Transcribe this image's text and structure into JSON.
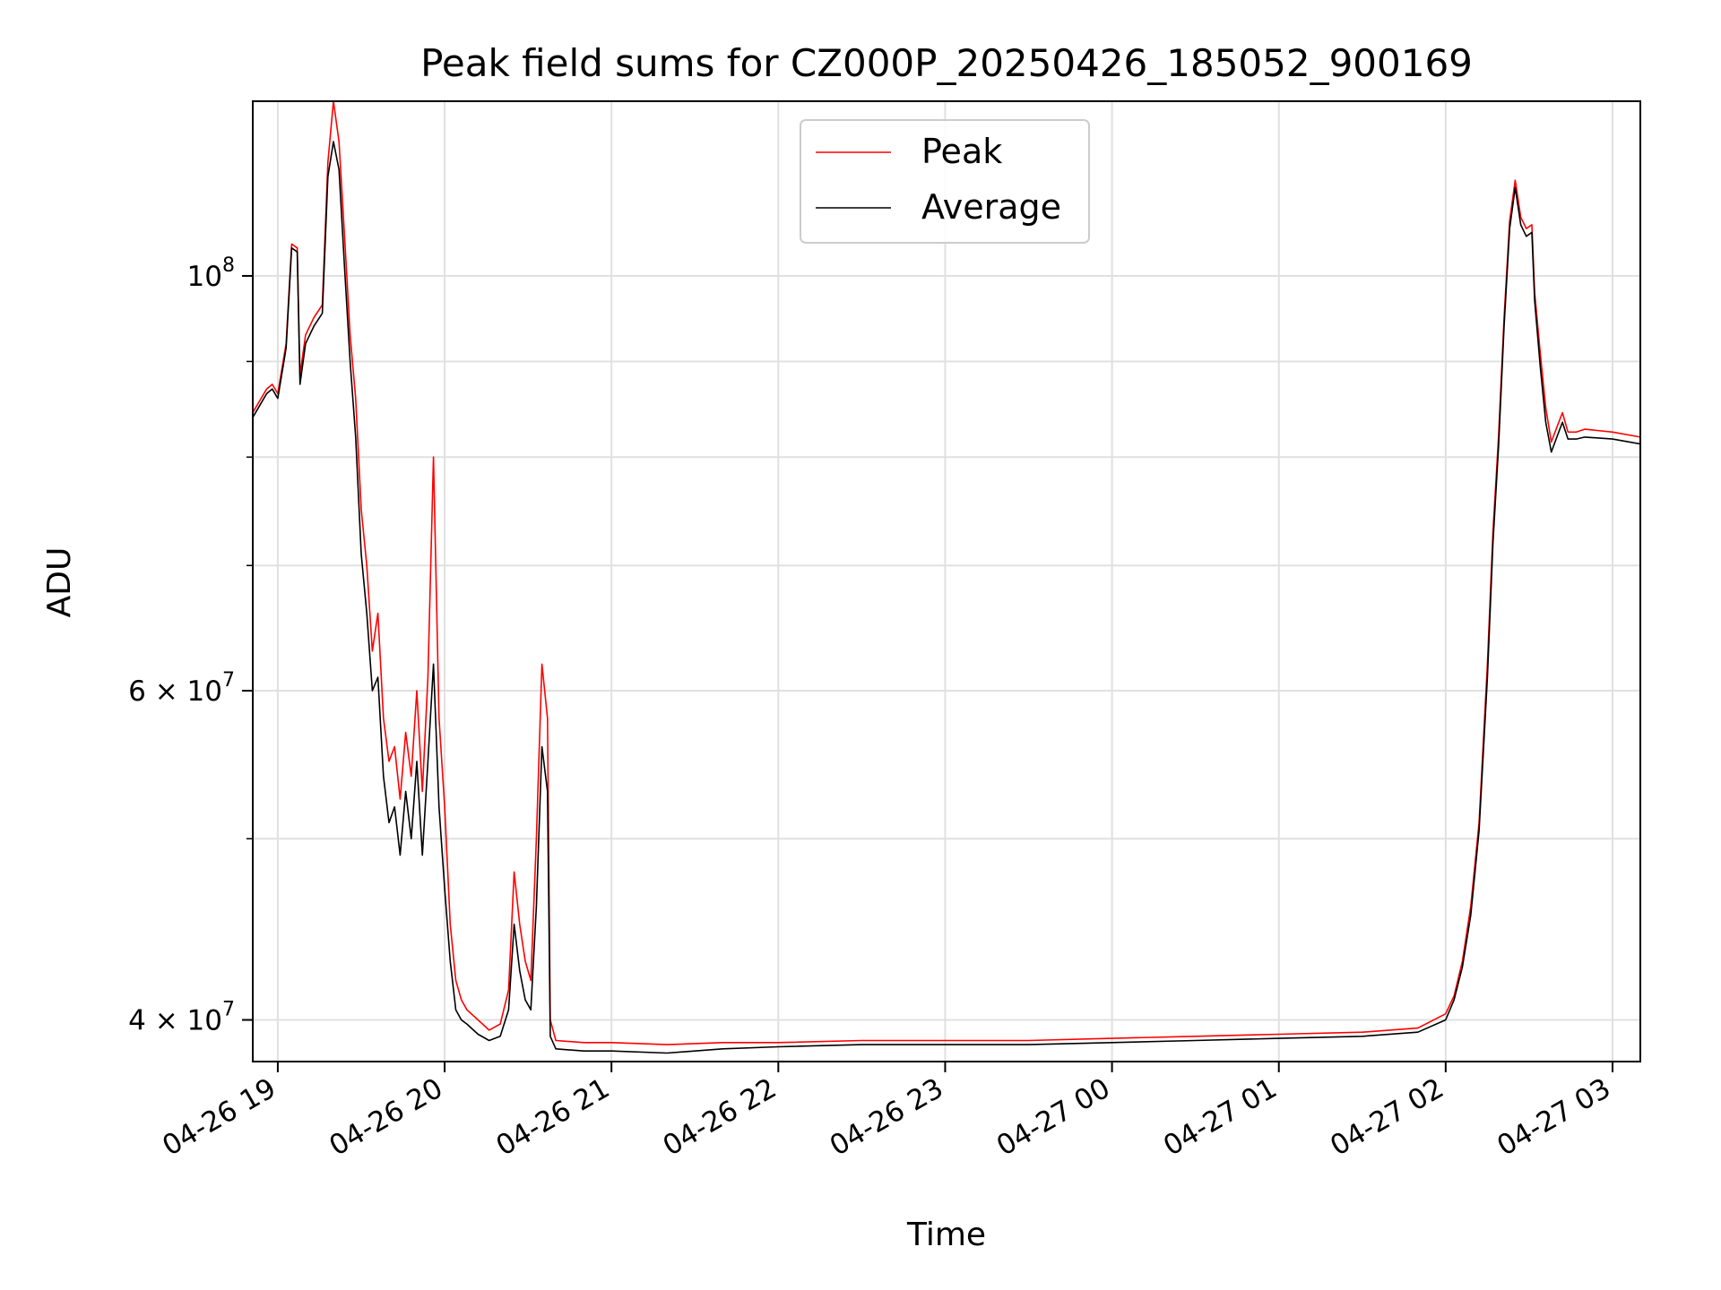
{
  "chart_data": {
    "type": "line",
    "title": "Peak field sums for CZ000P_20250426_185052_900169",
    "xlabel": "Time",
    "ylabel": "ADU",
    "y_scale": "log",
    "ylim": [
      38000000,
      124000000
    ],
    "xlim": [
      "04-26 18:51",
      "04-27 03:10"
    ],
    "grid": true,
    "legend_position": "upper center",
    "x_ticks": [
      "04-26 19",
      "04-26 20",
      "04-26 21",
      "04-26 22",
      "04-26 23",
      "04-27 00",
      "04-27 01",
      "04-27 02",
      "04-27 03"
    ],
    "y_tick_labels": [
      {
        "value": 100000000,
        "base": "10",
        "exp": "8",
        "coef": ""
      },
      {
        "value": 60000000,
        "base": "10",
        "exp": "7",
        "coef": "6 × "
      },
      {
        "value": 40000000,
        "base": "10",
        "exp": "7",
        "coef": "4 × "
      }
    ],
    "y_minor_grid": [
      50000000,
      70000000,
      80000000,
      90000000
    ],
    "series": [
      {
        "name": "Peak",
        "color": "#ff0000",
        "points": [
          [
            "04-26 18:51",
            84.5
          ],
          [
            "04-26 18:53",
            85.5
          ],
          [
            "04-26 18:56",
            87.0
          ],
          [
            "04-26 18:58",
            87.5
          ],
          [
            "04-26 19:00",
            86.5
          ],
          [
            "04-26 19:03",
            92.0
          ],
          [
            "04-26 19:05",
            104.0
          ],
          [
            "04-26 19:07",
            103.5
          ],
          [
            "04-26 19:08",
            88.5
          ],
          [
            "04-26 19:10",
            93.0
          ],
          [
            "04-26 19:13",
            95.0
          ],
          [
            "04-26 19:16",
            96.5
          ],
          [
            "04-26 19:18",
            115.0
          ],
          [
            "04-26 19:20",
            124.0
          ],
          [
            "04-26 19:22",
            118.0
          ],
          [
            "04-26 19:24",
            105.0
          ],
          [
            "04-26 19:26",
            93.0
          ],
          [
            "04-26 19:28",
            86.0
          ],
          [
            "04-26 19:30",
            75.0
          ],
          [
            "04-26 19:32",
            70.0
          ],
          [
            "04-26 19:34",
            63.0
          ],
          [
            "04-26 19:36",
            66.0
          ],
          [
            "04-26 19:38",
            58.0
          ],
          [
            "04-26 19:40",
            55.0
          ],
          [
            "04-26 19:42",
            56.0
          ],
          [
            "04-26 19:44",
            52.5
          ],
          [
            "04-26 19:46",
            57.0
          ],
          [
            "04-26 19:48",
            54.0
          ],
          [
            "04-26 19:50",
            60.0
          ],
          [
            "04-26 19:52",
            53.0
          ],
          [
            "04-26 19:54",
            61.0
          ],
          [
            "04-26 19:56",
            80.0
          ],
          [
            "04-26 19:58",
            58.0
          ],
          [
            "04-26 20:00",
            52.0
          ],
          [
            "04-26 20:02",
            45.0
          ],
          [
            "04-26 20:04",
            42.0
          ],
          [
            "04-26 20:06",
            41.0
          ],
          [
            "04-26 20:08",
            40.5
          ],
          [
            "04-26 20:12",
            40.0
          ],
          [
            "04-26 20:16",
            39.5
          ],
          [
            "04-26 20:20",
            39.8
          ],
          [
            "04-26 20:23",
            41.5
          ],
          [
            "04-26 20:25",
            48.0
          ],
          [
            "04-26 20:27",
            45.0
          ],
          [
            "04-26 20:29",
            43.0
          ],
          [
            "04-26 20:31",
            42.0
          ],
          [
            "04-26 20:33",
            50.0
          ],
          [
            "04-26 20:35",
            62.0
          ],
          [
            "04-26 20:37",
            58.0
          ],
          [
            "04-26 20:38",
            40.0
          ],
          [
            "04-26 20:40",
            39.0
          ],
          [
            "04-26 20:50",
            38.9
          ],
          [
            "04-26 21:00",
            38.9
          ],
          [
            "04-26 21:20",
            38.8
          ],
          [
            "04-26 21:40",
            38.9
          ],
          [
            "04-26 22:00",
            38.9
          ],
          [
            "04-26 22:30",
            39.0
          ],
          [
            "04-26 23:00",
            39.0
          ],
          [
            "04-26 23:30",
            39.0
          ],
          [
            "04-27 00:00",
            39.1
          ],
          [
            "04-27 00:30",
            39.2
          ],
          [
            "04-27 01:00",
            39.3
          ],
          [
            "04-27 01:30",
            39.4
          ],
          [
            "04-27 01:50",
            39.6
          ],
          [
            "04-27 02:00",
            40.3
          ],
          [
            "04-27 02:03",
            41.2
          ],
          [
            "04-27 02:06",
            43.0
          ],
          [
            "04-27 02:09",
            46.0
          ],
          [
            "04-27 02:12",
            51.0
          ],
          [
            "04-27 02:15",
            62.0
          ],
          [
            "04-27 02:17",
            73.0
          ],
          [
            "04-27 02:19",
            82.0
          ],
          [
            "04-27 02:21",
            95.0
          ],
          [
            "04-27 02:23",
            107.0
          ],
          [
            "04-27 02:25",
            112.5
          ],
          [
            "04-27 02:27",
            107.5
          ],
          [
            "04-27 02:29",
            106.0
          ],
          [
            "04-27 02:31",
            106.5
          ],
          [
            "04-27 02:32",
            98.0
          ],
          [
            "04-27 02:34",
            91.0
          ],
          [
            "04-27 02:36",
            85.0
          ],
          [
            "04-27 02:38",
            81.5
          ],
          [
            "04-27 02:40",
            83.0
          ],
          [
            "04-27 02:42",
            84.5
          ],
          [
            "04-27 02:44",
            82.5
          ],
          [
            "04-27 02:47",
            82.5
          ],
          [
            "04-27 02:50",
            82.8
          ],
          [
            "04-27 03:00",
            82.5
          ],
          [
            "04-27 03:10",
            82.0
          ]
        ]
      },
      {
        "name": "Average",
        "color": "#000000",
        "points": [
          [
            "04-26 18:51",
            84.0
          ],
          [
            "04-26 18:53",
            85.0
          ],
          [
            "04-26 18:56",
            86.5
          ],
          [
            "04-26 18:58",
            87.0
          ],
          [
            "04-26 19:00",
            86.0
          ],
          [
            "04-26 19:03",
            91.5
          ],
          [
            "04-26 19:05",
            103.5
          ],
          [
            "04-26 19:07",
            103.0
          ],
          [
            "04-26 19:08",
            87.5
          ],
          [
            "04-26 19:10",
            92.0
          ],
          [
            "04-26 19:13",
            94.0
          ],
          [
            "04-26 19:16",
            95.5
          ],
          [
            "04-26 19:18",
            113.0
          ],
          [
            "04-26 19:20",
            118.0
          ],
          [
            "04-26 19:22",
            114.0
          ],
          [
            "04-26 19:24",
            101.0
          ],
          [
            "04-26 19:26",
            90.0
          ],
          [
            "04-26 19:28",
            82.0
          ],
          [
            "04-26 19:30",
            71.0
          ],
          [
            "04-26 19:32",
            66.0
          ],
          [
            "04-26 19:34",
            60.0
          ],
          [
            "04-26 19:36",
            61.0
          ],
          [
            "04-26 19:38",
            54.0
          ],
          [
            "04-26 19:40",
            51.0
          ],
          [
            "04-26 19:42",
            52.0
          ],
          [
            "04-26 19:44",
            49.0
          ],
          [
            "04-26 19:46",
            53.0
          ],
          [
            "04-26 19:48",
            50.0
          ],
          [
            "04-26 19:50",
            55.0
          ],
          [
            "04-26 19:52",
            49.0
          ],
          [
            "04-26 19:54",
            55.0
          ],
          [
            "04-26 19:56",
            62.0
          ],
          [
            "04-26 19:58",
            52.0
          ],
          [
            "04-26 20:00",
            47.0
          ],
          [
            "04-26 20:02",
            43.0
          ],
          [
            "04-26 20:04",
            40.5
          ],
          [
            "04-26 20:06",
            40.0
          ],
          [
            "04-26 20:08",
            39.8
          ],
          [
            "04-26 20:12",
            39.3
          ],
          [
            "04-26 20:16",
            39.0
          ],
          [
            "04-26 20:20",
            39.2
          ],
          [
            "04-26 20:23",
            40.5
          ],
          [
            "04-26 20:25",
            45.0
          ],
          [
            "04-26 20:27",
            42.5
          ],
          [
            "04-26 20:29",
            41.0
          ],
          [
            "04-26 20:31",
            40.5
          ],
          [
            "04-26 20:33",
            46.0
          ],
          [
            "04-26 20:35",
            56.0
          ],
          [
            "04-26 20:37",
            53.0
          ],
          [
            "04-26 20:38",
            39.2
          ],
          [
            "04-26 20:40",
            38.6
          ],
          [
            "04-26 20:50",
            38.5
          ],
          [
            "04-26 21:00",
            38.5
          ],
          [
            "04-26 21:20",
            38.4
          ],
          [
            "04-26 21:40",
            38.6
          ],
          [
            "04-26 22:00",
            38.7
          ],
          [
            "04-26 22:30",
            38.8
          ],
          [
            "04-26 23:00",
            38.8
          ],
          [
            "04-26 23:30",
            38.8
          ],
          [
            "04-27 00:00",
            38.9
          ],
          [
            "04-27 00:30",
            39.0
          ],
          [
            "04-27 01:00",
            39.1
          ],
          [
            "04-27 01:30",
            39.2
          ],
          [
            "04-27 01:50",
            39.4
          ],
          [
            "04-27 02:00",
            40.0
          ],
          [
            "04-27 02:03",
            41.0
          ],
          [
            "04-27 02:06",
            42.7
          ],
          [
            "04-27 02:09",
            45.5
          ],
          [
            "04-27 02:12",
            50.5
          ],
          [
            "04-27 02:15",
            61.0
          ],
          [
            "04-27 02:17",
            72.0
          ],
          [
            "04-27 02:19",
            81.0
          ],
          [
            "04-27 02:21",
            94.0
          ],
          [
            "04-27 02:23",
            106.0
          ],
          [
            "04-27 02:25",
            111.5
          ],
          [
            "04-27 02:27",
            106.5
          ],
          [
            "04-27 02:29",
            105.0
          ],
          [
            "04-27 02:31",
            105.5
          ],
          [
            "04-27 02:32",
            97.0
          ],
          [
            "04-27 02:34",
            89.5
          ],
          [
            "04-27 02:36",
            83.5
          ],
          [
            "04-27 02:38",
            80.5
          ],
          [
            "04-27 02:40",
            82.0
          ],
          [
            "04-27 02:42",
            83.5
          ],
          [
            "04-27 02:44",
            81.8
          ],
          [
            "04-27 02:47",
            81.8
          ],
          [
            "04-27 02:50",
            82.0
          ],
          [
            "04-27 03:00",
            81.8
          ],
          [
            "04-27 03:10",
            81.3
          ]
        ]
      }
    ],
    "value_unit_multiplier": 1000000
  }
}
